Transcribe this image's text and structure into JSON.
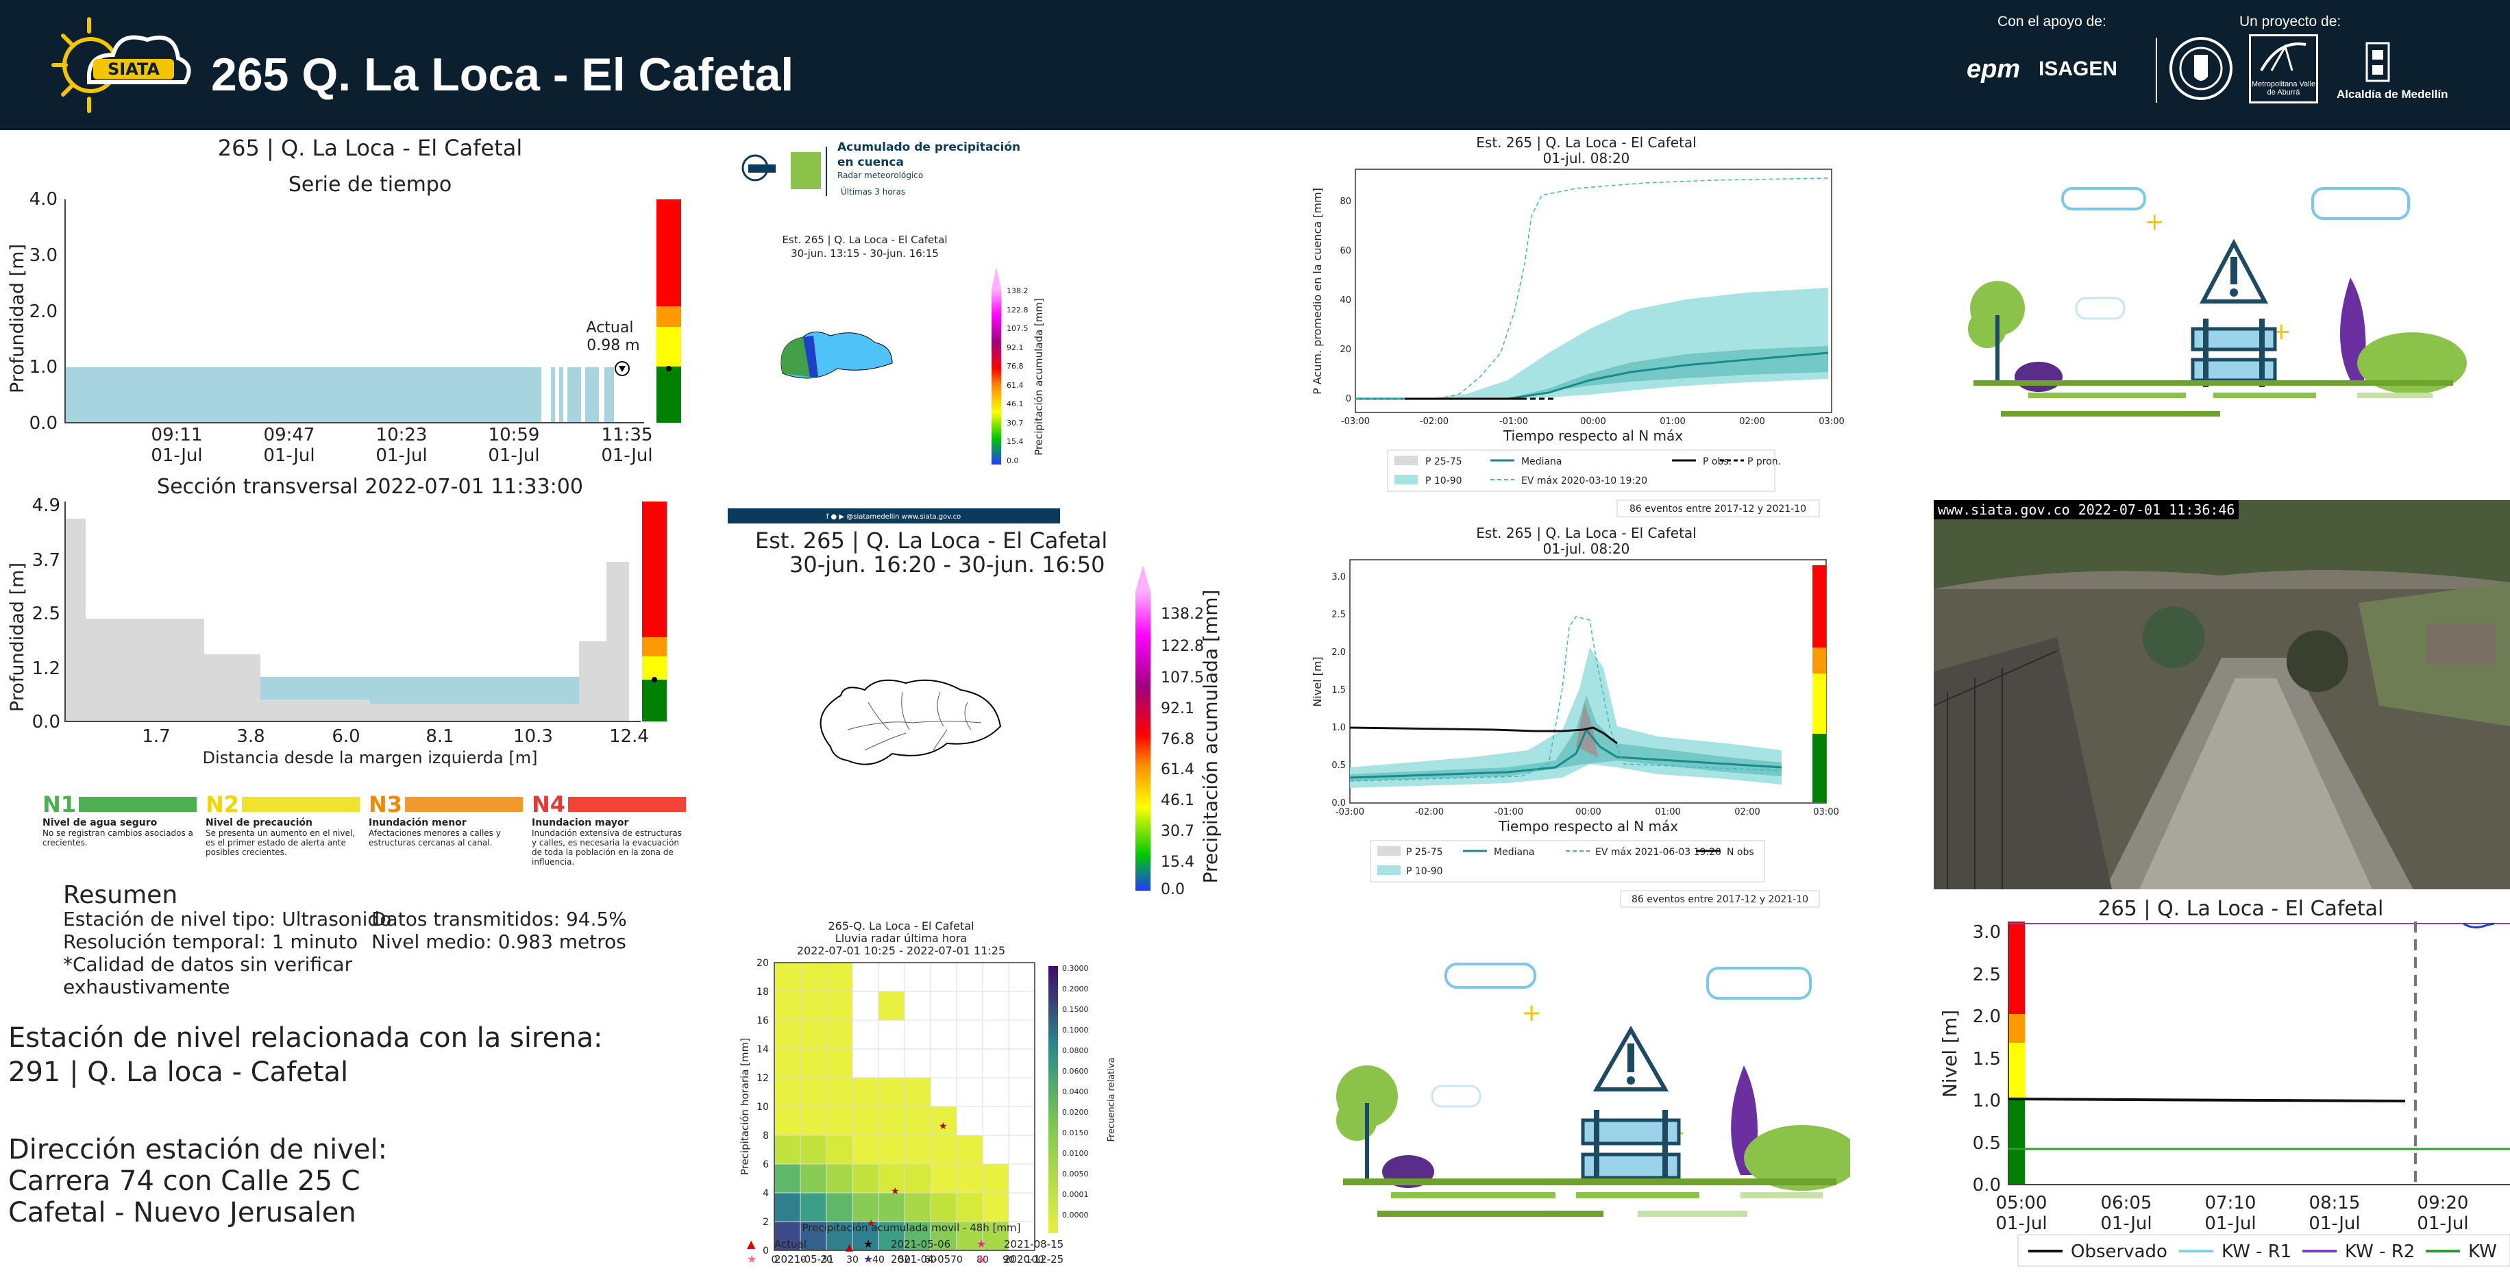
{
  "header": {
    "title": "265 Q. La Loca - El Cafetal",
    "logo_text": "SIATA",
    "support_label": "Con el apoyo de:",
    "project_label": "Un proyecto de:",
    "sponsors": [
      "epm",
      "ISAGEN",
      "Metropolitana Valle de Aburrá",
      "Alcaldía de Medellín"
    ]
  },
  "colors": {
    "header_bg": "#0b1f2e",
    "water": "#a8d4e0",
    "ground": "#d9d9d9",
    "n1": "#2e8b2e",
    "n2": "#ffff00",
    "n3": "#ff9900",
    "n4": "#ff0000",
    "teal": "#1a8a8a"
  },
  "timeseries": {
    "suptitle": "265 | Q. La Loca - El Cafetal",
    "title": "Serie de tiempo",
    "ylabel": "Profundidad [m]",
    "yticks": [
      "0.0",
      "1.0",
      "2.0",
      "3.0",
      "4.0"
    ],
    "xticks": [
      [
        "09:11",
        "01-Jul"
      ],
      [
        "09:47",
        "01-Jul"
      ],
      [
        "10:23",
        "01-Jul"
      ],
      [
        "10:59",
        "01-Jul"
      ],
      [
        "11:35",
        "01-Jul"
      ]
    ],
    "actual_label": "Actual",
    "actual_value": "0.98 m"
  },
  "section": {
    "title": "Sección transversal 2022-07-01 11:33:00",
    "ylabel": "Profundidad [m]",
    "xlabel": "Distancia desde la margen izquierda [m]",
    "yticks": [
      "0.0",
      "1.2",
      "2.5",
      "3.7",
      "4.9"
    ],
    "xticks": [
      "1.7",
      "3.8",
      "6.0",
      "8.1",
      "10.3",
      "12.4"
    ]
  },
  "levels": [
    {
      "code": "N1",
      "name": "Nivel de agua seguro",
      "desc": "No se registran cambios asociados a crecientes.",
      "color": "#4caf50"
    },
    {
      "code": "N2",
      "name": "Nivel de precaución",
      "desc": "Se presenta un aumento en el nivel, es el primer estado de alerta ante posibles crecientes.",
      "color": "#ffeb3b"
    },
    {
      "code": "N3",
      "name": "Inundación menor",
      "desc": "Afectaciones menores a calles y estructuras cercanas al canal.",
      "color": "#ff9800"
    },
    {
      "code": "N4",
      "name": "Inundacion mayor",
      "desc": "Inundación extensiva de estructuras y calles, es necesaria la evacuación de toda la población en la zona de influencia.",
      "color": "#f44336"
    }
  ],
  "resumen": {
    "title": "Resumen",
    "lines": [
      "Estación de nivel tipo: Ultrasonido",
      "Resolución temporal: 1 minuto",
      "*Calidad de datos sin verificar",
      "exhaustivamente"
    ],
    "right_lines": [
      "Datos transmitidos: 94.5%",
      "Nivel medio: 0.983 metros"
    ]
  },
  "related": {
    "siren_label": "Estación de nivel relacionada con la sirena:",
    "siren_value": " 291 | Q. La loca - Cafetal",
    "address_label": "Dirección estación de nivel:",
    "address_line1": " Carrera 74 con Calle 25 C",
    "address_line2": " Cafetal - Nuevo Jerusalen"
  },
  "radar_card": {
    "title1": "Acumulado de precipitación",
    "title2": "en cuenca",
    "subtitle": "Radar meteorológico",
    "window": "Últimas 3 horas",
    "station": "Est. 265 | Q. La Loca - El Cafetal",
    "period": "30-jun. 13:15 - 30-jun. 16:15",
    "cbar_label": "Precipitación acumulada [mm]",
    "cbar_ticks": [
      "138.2",
      "122.8",
      "107.5",
      "92.1",
      "76.8",
      "61.4",
      "46.1",
      "30.7",
      "15.4",
      "0.0"
    ],
    "footer": "f ● ▶ @siatamedellin   www.siata.gov.co"
  },
  "radar_now": {
    "station": "Est. 265 | Q. La Loca - El Cafetal",
    "period": "30-jun. 16:20 - 30-jun. 16:50",
    "cbar_label": "Precipitación acumulada [mm]",
    "cbar_ticks": [
      "138.2",
      "122.8",
      "107.5",
      "92.1",
      "76.8",
      "61.4",
      "46.1",
      "30.7",
      "15.4",
      "0.0"
    ]
  },
  "heatmap": {
    "title1": "265-Q. La Loca - El Cafetal",
    "title2": "Lluvia radar última hora",
    "title3": "2022-07-01 10:25 - 2022-07-01 11:25",
    "ylabel": "Precipitación horaria [mm]",
    "xlabel": "Precipitación acumulada movil - 48h [mm]",
    "cbar_label": "Frecuencia relativa",
    "cbar_ticks": [
      "0.3000",
      "0.2000",
      "0.1500",
      "0.1000",
      "0.0800",
      "0.0600",
      "0.0400",
      "0.0200",
      "0.0150",
      "0.0100",
      "0.0050",
      "0.0001",
      "0.0000"
    ],
    "xticks": [
      "0",
      "10",
      "20",
      "30",
      "40",
      "50",
      "60",
      "70",
      "80",
      "90",
      "100"
    ],
    "yticks": [
      "0",
      "2",
      "4",
      "6",
      "8",
      "10",
      "12",
      "14",
      "16",
      "18",
      "20"
    ],
    "legend": [
      "Actual",
      "2021-05-06",
      "2021-08-15",
      "2021-05-31",
      "2021-04-05",
      "2020-12-25"
    ]
  },
  "cumulative": {
    "title1": "Est. 265 | Q. La Loca - El Cafetal",
    "title2": "01-jul. 08:20",
    "ylabel": "P Acum. promedio en la cuenca [mm]",
    "xlabel": "Tiempo respecto al N máx",
    "yticks": [
      "0",
      "20",
      "40",
      "60",
      "80"
    ],
    "xticks": [
      "-03:00",
      "-02:00",
      "-01:00",
      "00:00",
      "01:00",
      "02:00",
      "03:00"
    ],
    "legend": [
      "P 25-75",
      "Mediana",
      "P obs.",
      "P pron.",
      "P 10-90",
      "EV máx 2020-03-10 19:20"
    ],
    "events": "86 eventos entre 2017-12 y 2021-10"
  },
  "level_stats": {
    "title1": "Est. 265 | Q. La Loca - El Cafetal",
    "title2": "01-jul. 08:20",
    "ylabel": "Nivel [m]",
    "xlabel": "Tiempo respecto al N máx",
    "yticks": [
      "0.0",
      "0.5",
      "1.0",
      "1.5",
      "2.0",
      "2.5",
      "3.0"
    ],
    "xticks": [
      "-03:00",
      "-02:00",
      "-01:00",
      "00:00",
      "01:00",
      "02:00",
      "03:00"
    ],
    "legend": [
      "P 25-75",
      "Mediana",
      "EV máx 2021-06-03 19:20",
      "N obs",
      "P 10-90"
    ],
    "events": "86 eventos entre 2017-12 y 2021-10"
  },
  "webcam": {
    "stamp": "www.siata.gov.co 2022-07-01 11:36:46"
  },
  "forecast": {
    "title": "265 | Q. La Loca - El Cafetal",
    "ylabel": "Nivel [m]",
    "yticks": [
      "0.0",
      "0.5",
      "1.0",
      "1.5",
      "2.0",
      "2.5",
      "3.0"
    ],
    "xticks": [
      [
        "05:00",
        "01-Jul"
      ],
      [
        "06:05",
        "01-Jul"
      ],
      [
        "07:10",
        "01-Jul"
      ],
      [
        "08:15",
        "01-Jul"
      ],
      [
        "09:20",
        "01-Jul"
      ]
    ],
    "legend": [
      "Observado",
      "KW - R1",
      "KW - R2",
      "KW"
    ]
  }
}
